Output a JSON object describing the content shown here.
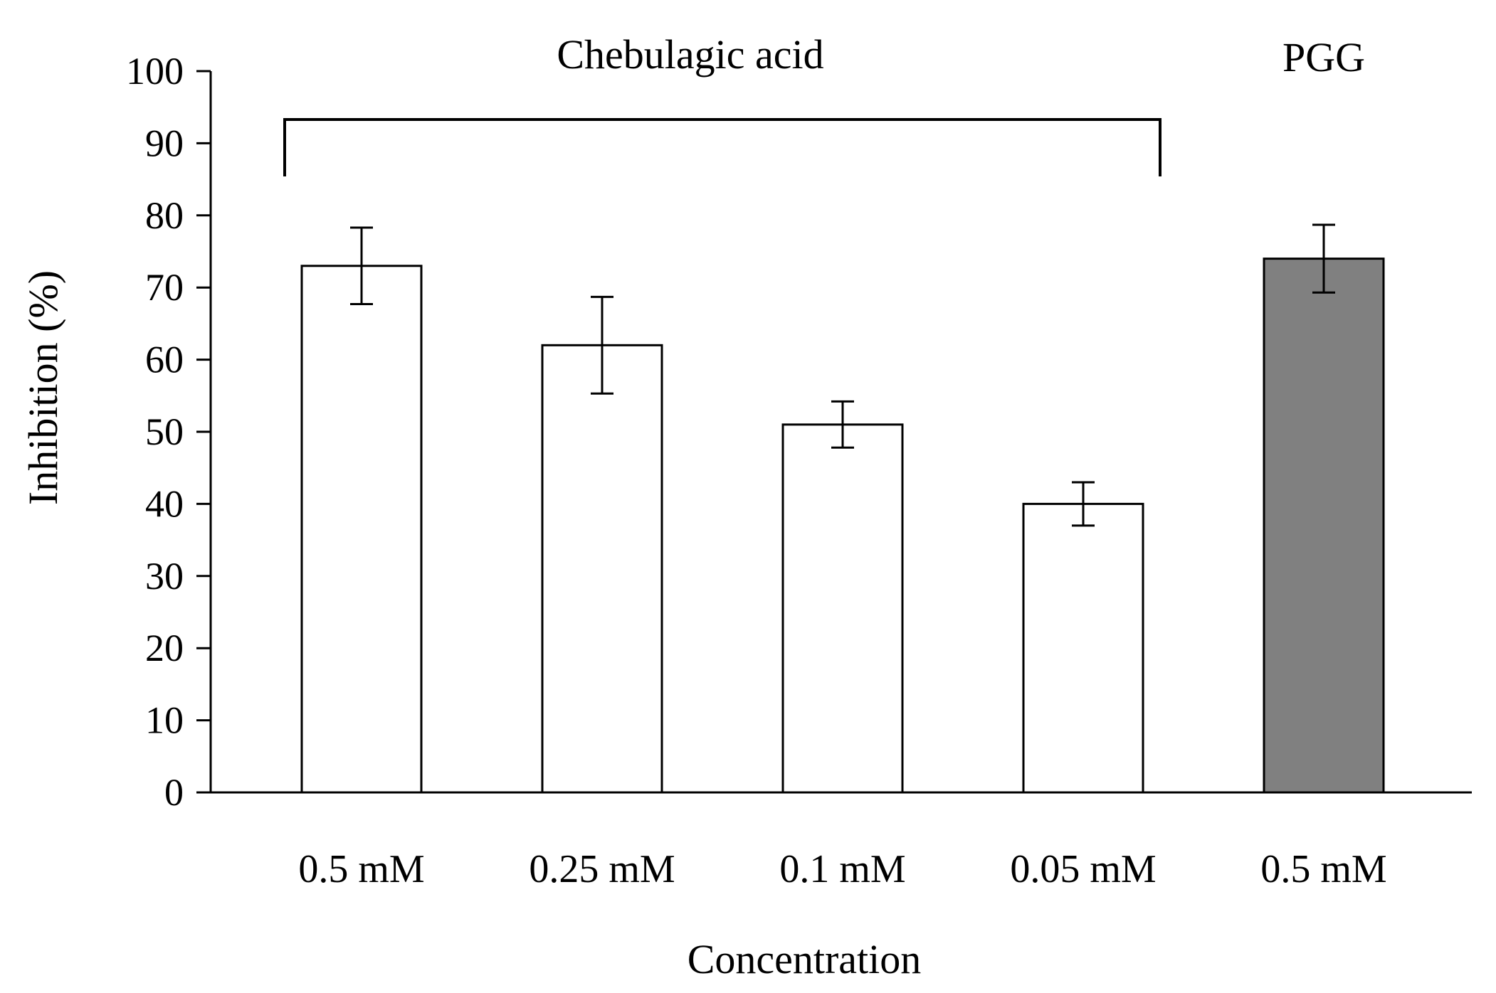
{
  "chart_data": {
    "type": "bar",
    "title": "",
    "xlabel": "Concentration",
    "ylabel": "Inhibition (%)",
    "ylim": [
      0,
      100
    ],
    "yticks": [
      0,
      10,
      20,
      30,
      40,
      50,
      60,
      70,
      80,
      90,
      100
    ],
    "yticks_text": [
      "0",
      "10",
      "20",
      "30",
      "40",
      "50",
      "60",
      "70",
      "80",
      "90",
      "100"
    ],
    "categories": [
      "0.5 mM",
      "0.25 mM",
      "0.1 mM",
      "0.05 mM",
      "0.5 mM"
    ],
    "values": [
      73,
      62,
      51,
      40,
      74
    ],
    "errors": [
      5.3,
      6.7,
      3.2,
      3.0,
      4.7
    ],
    "bar_groups": [
      "Chebulagic acid",
      "Chebulagic acid",
      "Chebulagic acid",
      "Chebulagic acid",
      "PGG"
    ],
    "groups": [
      {
        "label": "Chebulagic acid",
        "bracket": true,
        "fill": "#ffffff"
      },
      {
        "label": "PGG",
        "bracket": false,
        "fill": "#808080"
      }
    ],
    "grid": false,
    "legend": "none"
  }
}
